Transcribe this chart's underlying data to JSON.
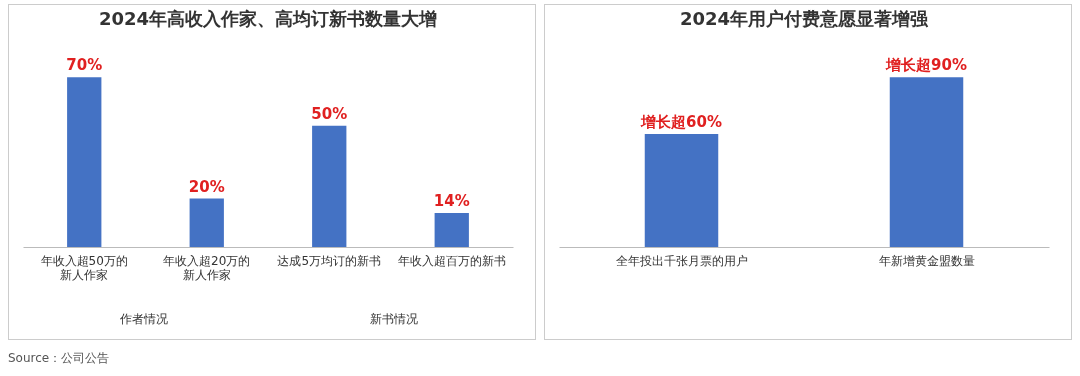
{
  "chart_data": [
    {
      "type": "bar",
      "title": "2024年高收入作家、高均订新书数量大增",
      "categories": [
        "年收入超50万的新人作家",
        "年收入超20万的新人作家",
        "达成5万均订的新书",
        "年收入超百万的新书"
      ],
      "values": [
        70,
        20,
        50,
        14
      ],
      "value_labels": [
        "70%",
        "20%",
        "50%",
        "14%"
      ],
      "color": "#4472c4",
      "annotations": [
        "作者情况",
        "新书情况",
        "Source：公司公告"
      ]
    },
    {
      "type": "bar",
      "title": "2024年用户付费意愿显著增强",
      "categories": [
        "全年投出千张月票的用户",
        "年新增黄金盟数量"
      ],
      "values": [
        60,
        90
      ],
      "value_labels": [
        "增长超60%",
        "增长超90%"
      ],
      "color": "#4472c4"
    }
  ]
}
